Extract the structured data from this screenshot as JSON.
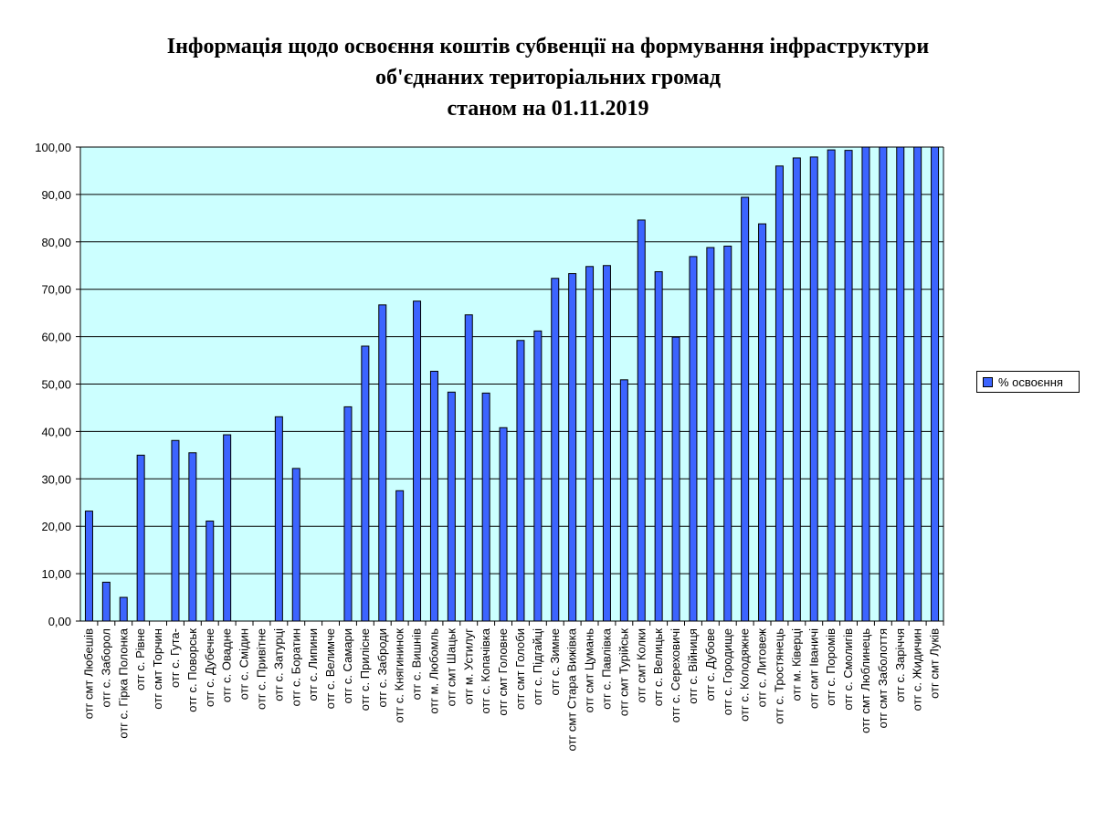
{
  "title_lines": [
    "Інформація щодо освоєння коштів субвенції на формування інфраструктури",
    "об'єднаних територіальних громад",
    "станом на 01.11.2019"
  ],
  "legend": {
    "label": "% освоєння",
    "placement": "right"
  },
  "colors": {
    "plot_bg": "#ccffff",
    "bar": "#3c64ff",
    "bar_border": "#000000",
    "grid": "#000000"
  },
  "chart_data": {
    "type": "bar",
    "title": "Інформація щодо освоєння коштів субвенції на формування інфраструктури об'єднаних територіальних громад станом на 01.11.2019",
    "xlabel": "",
    "ylabel": "",
    "ylim": [
      0,
      100
    ],
    "yticks": [
      "0,00",
      "10,00",
      "20,00",
      "30,00",
      "40,00",
      "50,00",
      "60,00",
      "70,00",
      "80,00",
      "90,00",
      "100,00"
    ],
    "grid": true,
    "categories": [
      "отг смт Любешів",
      "отг с. Заборол",
      "отг с. Гірка Полонка",
      "отг с. Рівне",
      "отг смт Торчин",
      "отг с. Гута-",
      "отг с. Поворськ",
      "отг с. Дубечне",
      "отг с. Овадне",
      "отг с. Смідин",
      "отг с. Привітне",
      "отг с. Затурці",
      "отг с. Боратин",
      "отг с. Липини",
      "отг с. Велимче",
      "отг с. Самари",
      "отг с. Прилісне",
      "отг с. Заброди",
      "отг с. Княгининок",
      "отг с. Вишнів",
      "отг м. Любомль",
      "отг смт Шацьк",
      "отг м. Устилуг",
      "отг с. Копачівка",
      "отг смт Головне",
      "отг смт Голоби",
      "отг с. Підгайці",
      "отг с. Зимне",
      "отг смт Стара Вижівка",
      "отг смт Цумань",
      "отг с. Павлівка",
      "отг смт Турійськ",
      "отг смт Колки",
      "отг с. Велицьк",
      "отг с. Сереховичі",
      "отг с. Війниця",
      "отг с. Дубове",
      "отг с. Городище",
      "отг с. Колодяжне",
      "отг с. Литовеж",
      "отг с. Тростянець",
      "отг м. Ківерці",
      "отг смт Іваничі",
      "отг с. Поромів",
      "отг с. Смолигів",
      "отг смт Люблинець",
      "отг смт Заболоття",
      "отг с. Заріччя",
      "отг с. Жидичин",
      "отг смт Луків"
    ],
    "series": [
      {
        "name": "% освоєння",
        "values": [
          23.2,
          8.2,
          5.0,
          35.0,
          0,
          38.1,
          35.5,
          21.1,
          39.3,
          0,
          0,
          43.1,
          32.2,
          0,
          0,
          45.2,
          58.0,
          66.7,
          27.5,
          67.5,
          52.7,
          48.3,
          64.6,
          48.1,
          40.8,
          59.2,
          61.2,
          72.3,
          73.3,
          74.8,
          75.0,
          50.9,
          84.6,
          73.7,
          59.9,
          76.9,
          78.8,
          79.1,
          89.4,
          83.8,
          96.0,
          97.7,
          97.9,
          99.4,
          99.3,
          100.0,
          100.0,
          100.0,
          100.0,
          100.0
        ]
      }
    ]
  }
}
